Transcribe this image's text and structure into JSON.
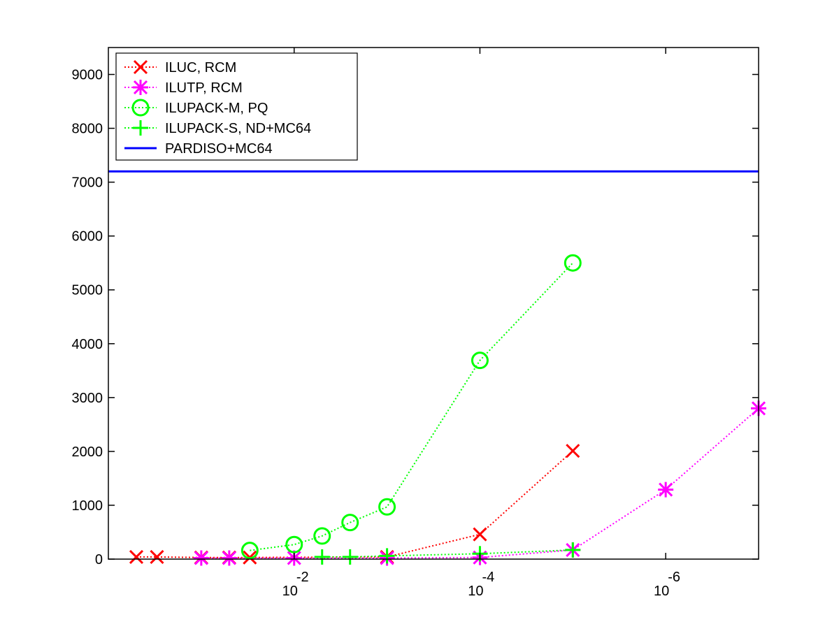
{
  "chart_data": {
    "type": "line",
    "title": "",
    "xlabel": "",
    "ylabel": "",
    "x_scale": "log-reversed",
    "xlim": [
      1,
      1e-07
    ],
    "ylim": [
      0,
      9500
    ],
    "grid": false,
    "legend_position": "top-left",
    "x_ticks": [
      {
        "value": 0.01,
        "base": "10",
        "exp": "-2"
      },
      {
        "value": 0.0001,
        "base": "10",
        "exp": "-4"
      },
      {
        "value": 1e-06,
        "base": "10",
        "exp": "-6"
      }
    ],
    "y_ticks": [
      0,
      1000,
      2000,
      3000,
      4000,
      5000,
      6000,
      7000,
      8000,
      9000
    ],
    "series": [
      {
        "name": "ILUC, RCM",
        "color": "#ff0000",
        "marker": "x",
        "line": "dotted",
        "x": [
          0.5,
          0.3,
          0.1,
          0.05,
          0.03,
          0.001,
          0.0001,
          1e-05
        ],
        "y": [
          40,
          40,
          30,
          30,
          30,
          40,
          460,
          2010
        ]
      },
      {
        "name": "ILUTP, RCM",
        "color": "#ff00ff",
        "marker": "star",
        "line": "dotted",
        "x": [
          0.1,
          0.05,
          0.01,
          0.001,
          0.0001,
          1e-05,
          1e-06,
          1e-07
        ],
        "y": [
          20,
          20,
          20,
          20,
          30,
          170,
          1290,
          2800
        ]
      },
      {
        "name": "ILUPACK-M, PQ",
        "color": "#00ff00",
        "marker": "o",
        "line": "dotted",
        "x": [
          0.03,
          0.01,
          0.005,
          0.0025,
          0.001,
          0.0001,
          1e-05
        ],
        "y": [
          160,
          270,
          430,
          680,
          970,
          3690,
          5500
        ]
      },
      {
        "name": "ILUPACK-S, ND+MC64",
        "color": "#00ff00",
        "marker": "+",
        "line": "dotted",
        "x": [
          0.005,
          0.0025,
          0.001,
          0.0001,
          1e-05
        ],
        "y": [
          40,
          40,
          60,
          100,
          170
        ]
      },
      {
        "name": "PARDISO+MC64",
        "color": "#0000ff",
        "marker": "none",
        "line": "solid",
        "x": [
          1,
          1e-07
        ],
        "y": [
          7200,
          7200
        ]
      }
    ]
  }
}
